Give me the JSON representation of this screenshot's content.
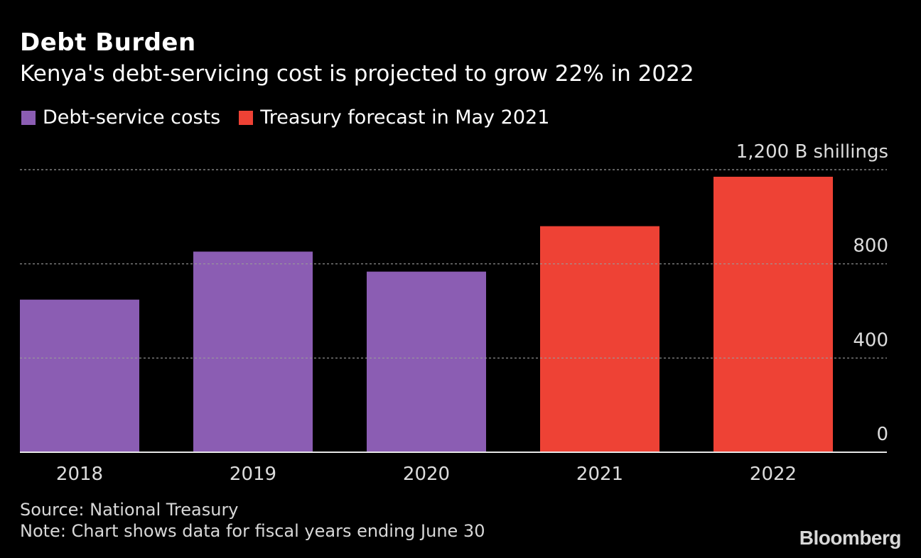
{
  "header": {
    "title": "Debt Burden",
    "subtitle": "Kenya's debt-servicing cost is projected to grow 22% in 2022"
  },
  "legend": [
    {
      "label": "Debt-service costs",
      "color": "#8b5db3"
    },
    {
      "label": "Treasury forecast in May 2021",
      "color": "#ee4235"
    }
  ],
  "footer": {
    "source": "Source: National Treasury",
    "note": "Note: Chart shows data for fiscal years ending June 30",
    "brand": "Bloomberg"
  },
  "chart_data": {
    "type": "bar",
    "title": "Debt Burden",
    "subtitle": "Kenya's debt-servicing cost is projected to grow 22% in 2022",
    "categories": [
      "2018",
      "2019",
      "2020",
      "2021",
      "2022"
    ],
    "series": [
      {
        "name": "Debt-service costs",
        "color": "#8b5db3",
        "values": [
          648,
          852,
          767,
          null,
          null
        ]
      },
      {
        "name": "Treasury forecast in May 2021",
        "color": "#ee4235",
        "values": [
          null,
          null,
          null,
          960,
          1170
        ]
      }
    ],
    "ylim": [
      0,
      1200
    ],
    "yticks": [
      {
        "value": 0,
        "label": "0"
      },
      {
        "value": 400,
        "label": "400"
      },
      {
        "value": 800,
        "label": "800"
      },
      {
        "value": 1200,
        "label": "1,200 B shillings"
      }
    ],
    "grid": true,
    "legend_position": "top-left"
  }
}
